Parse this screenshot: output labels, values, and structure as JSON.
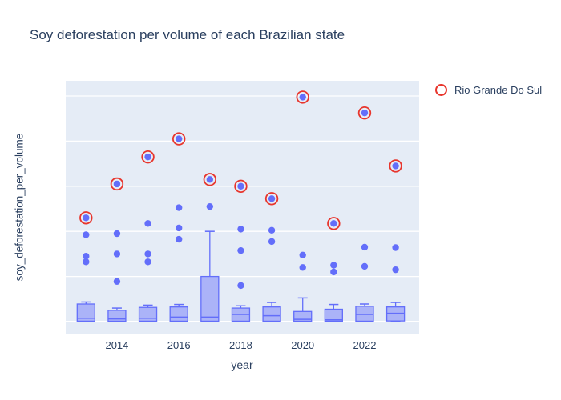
{
  "title": "Soy deforestation per volume of each Brazilian state",
  "legend": {
    "label": "Rio Grande Do Sul",
    "marker": "open-circle-icon"
  },
  "colors": {
    "text": "#2a3f5f",
    "plot_background": "#e5ecf6",
    "gridline": "#ffffff",
    "series_blue": "#636efa",
    "box_fill": "rgba(99,110,250,0.45)",
    "highlight_red": "#e8352c"
  },
  "chart_data": {
    "type": "box",
    "title": "Soy deforestation per volume of each Brazilian state",
    "xlabel": "year",
    "ylabel": "soy_deforestation_per_volume",
    "x_tick_labels": [
      "2014",
      "2016",
      "2018",
      "2020",
      "2022"
    ],
    "x_tick_years": [
      2014,
      2016,
      2018,
      2020,
      2022
    ],
    "y_ticks": [
      0,
      2,
      4,
      6,
      8,
      10
    ],
    "xlim_years": [
      2012.35,
      2023.75
    ],
    "ylim": [
      -0.57,
      10.67
    ],
    "grid": true,
    "legend_position": "top-right",
    "highlight_series_name": "Rio Grande Do Sul",
    "years": [
      2013,
      2014,
      2015,
      2016,
      2017,
      2018,
      2019,
      2020,
      2021,
      2022,
      2023
    ],
    "boxes": [
      {
        "year": 2013,
        "whisker_low": 0.0,
        "q1": 0.02,
        "median": 0.15,
        "q3": 0.78,
        "whisker_high": 0.87,
        "outliers": [
          3.85,
          2.9,
          2.65
        ],
        "rio_grande_do_sul": 4.6
      },
      {
        "year": 2014,
        "whisker_low": 0.0,
        "q1": 0.02,
        "median": 0.12,
        "q3": 0.5,
        "whisker_high": 0.6,
        "outliers": [
          3.9,
          3.0,
          1.78
        ],
        "rio_grande_do_sul": 6.1
      },
      {
        "year": 2015,
        "whisker_low": 0.0,
        "q1": 0.02,
        "median": 0.15,
        "q3": 0.63,
        "whisker_high": 0.73,
        "outliers": [
          4.35,
          3.0,
          2.65
        ],
        "rio_grande_do_sul": 7.3
      },
      {
        "year": 2016,
        "whisker_low": 0.0,
        "q1": 0.02,
        "median": 0.2,
        "q3": 0.65,
        "whisker_high": 0.76,
        "outliers": [
          5.05,
          4.15,
          3.65
        ],
        "rio_grande_do_sul": 8.1
      },
      {
        "year": 2017,
        "whisker_low": 0.0,
        "q1": 0.02,
        "median": 0.2,
        "q3": 2.0,
        "whisker_high": 4.0,
        "outliers": [
          5.1
        ],
        "rio_grande_do_sul": 6.3
      },
      {
        "year": 2018,
        "whisker_low": 0.0,
        "q1": 0.02,
        "median": 0.32,
        "q3": 0.6,
        "whisker_high": 0.7,
        "outliers": [
          4.1,
          3.15,
          1.6
        ],
        "rio_grande_do_sul": 6.0
      },
      {
        "year": 2019,
        "whisker_low": 0.0,
        "q1": 0.02,
        "median": 0.26,
        "q3": 0.65,
        "whisker_high": 0.85,
        "outliers": [
          4.05,
          3.55
        ],
        "rio_grande_do_sul": 5.45
      },
      {
        "year": 2020,
        "whisker_low": 0.0,
        "q1": 0.02,
        "median": 0.1,
        "q3": 0.45,
        "whisker_high": 1.05,
        "outliers": [
          2.95,
          2.4
        ],
        "rio_grande_do_sul": 9.95
      },
      {
        "year": 2021,
        "whisker_low": 0.0,
        "q1": 0.02,
        "median": 0.08,
        "q3": 0.55,
        "whisker_high": 0.76,
        "outliers": [
          2.5,
          2.2
        ],
        "rio_grande_do_sul": 4.35
      },
      {
        "year": 2022,
        "whisker_low": 0.0,
        "q1": 0.02,
        "median": 0.32,
        "q3": 0.68,
        "whisker_high": 0.78,
        "outliers": [
          3.3,
          2.45
        ],
        "rio_grande_do_sul": 9.25
      },
      {
        "year": 2023,
        "whisker_low": 0.0,
        "q1": 0.03,
        "median": 0.37,
        "q3": 0.65,
        "whisker_high": 0.85,
        "outliers": [
          3.28,
          2.3
        ],
        "rio_grande_do_sul": 6.9
      }
    ]
  }
}
